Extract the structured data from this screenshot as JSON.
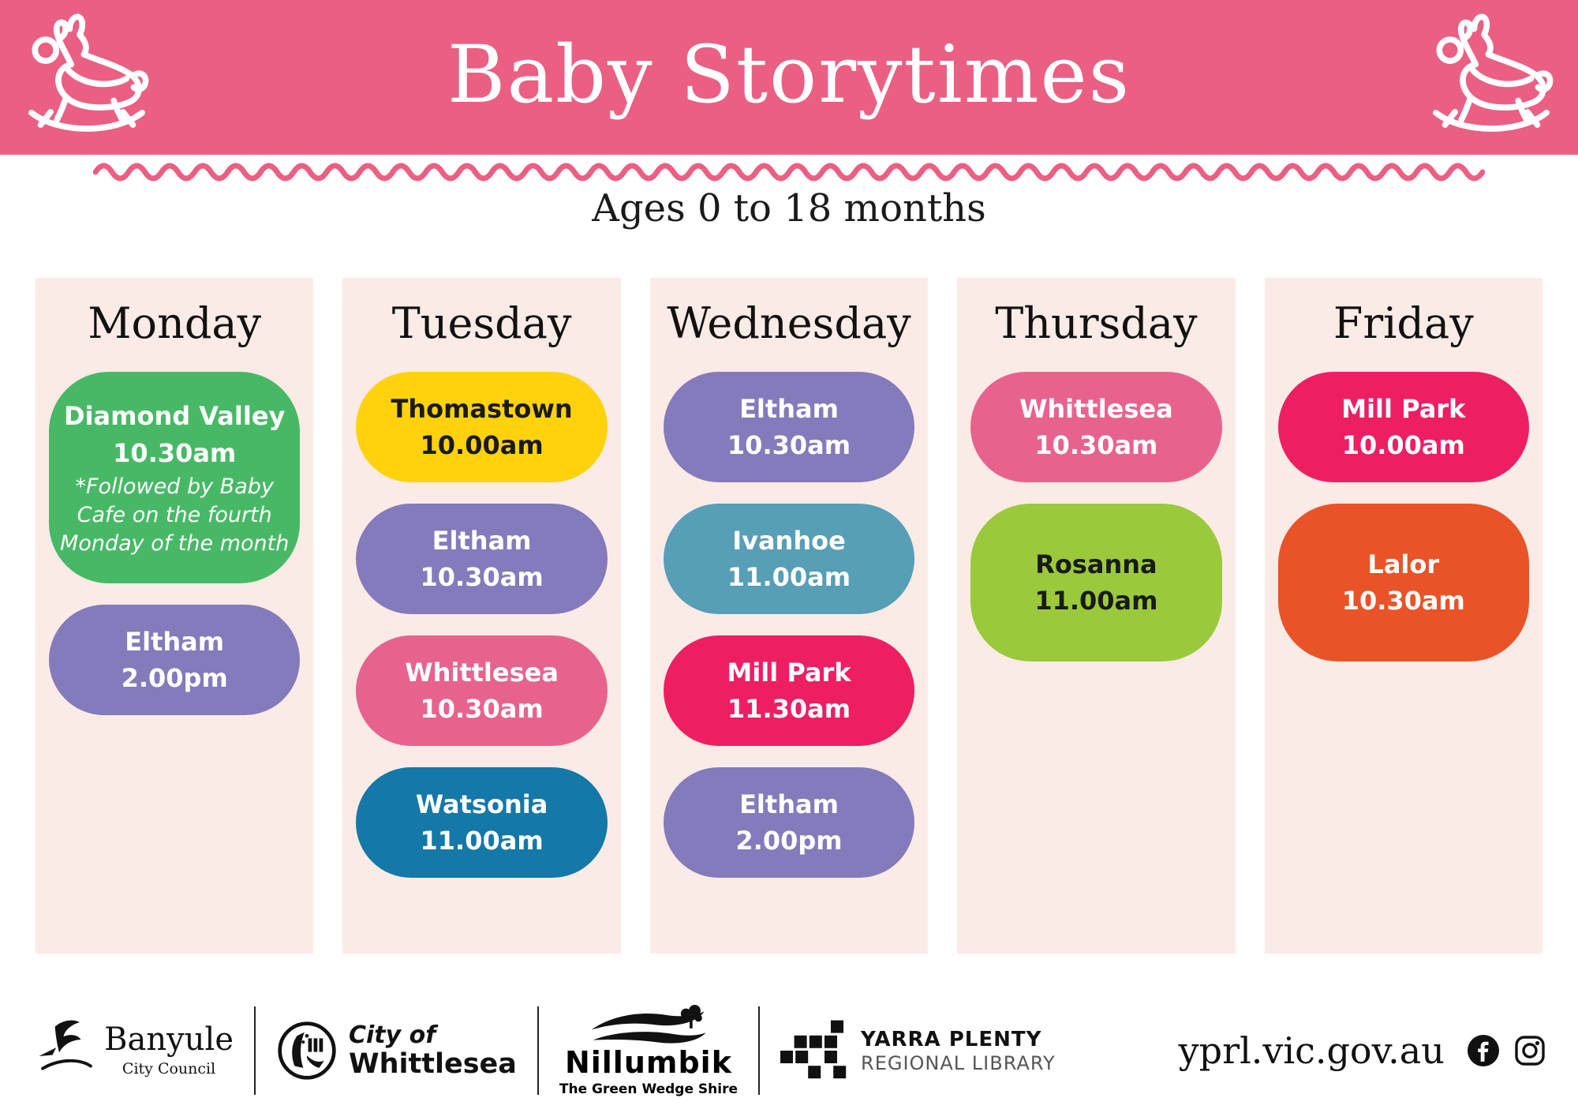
{
  "header": {
    "title": "Baby Storytimes",
    "left_icon": "rocking-horse-icon",
    "right_icon": "rocking-horse-icon"
  },
  "subtitle": "Ages 0 to 18 months",
  "days": [
    {
      "name": "Monday",
      "events": [
        {
          "location": "Diamond Valley",
          "time": "10.30am",
          "note_lines": [
            "*Followed by Baby",
            "Cafe on the fourth",
            "Monday of the month"
          ],
          "color": "#47B966",
          "text_color": "#FFFFFF"
        },
        {
          "location": "Eltham",
          "time": "2.00pm",
          "color": "#837BBB",
          "text_color": "#FFFFFF"
        }
      ]
    },
    {
      "name": "Tuesday",
      "events": [
        {
          "location": "Thomastown",
          "time": "10.00am",
          "color": "#FFD20E",
          "text_color": "#1A1A1A"
        },
        {
          "location": "Eltham",
          "time": "10.30am",
          "color": "#837BBB",
          "text_color": "#FFFFFF"
        },
        {
          "location": "Whittlesea",
          "time": "10.30am",
          "color": "#E7638D",
          "text_color": "#FFFFFF"
        },
        {
          "location": "Watsonia",
          "time": "11.00am",
          "color": "#1478A8",
          "text_color": "#FFFFFF"
        }
      ]
    },
    {
      "name": "Wednesday",
      "events": [
        {
          "location": "Eltham",
          "time": "10.30am",
          "color": "#837BBB",
          "text_color": "#FFFFFF"
        },
        {
          "location": "Ivanhoe",
          "time": "11.00am",
          "color": "#579EB7",
          "text_color": "#FFFFFF"
        },
        {
          "location": "Mill Park",
          "time": "11.30am",
          "color": "#EE1E63",
          "text_color": "#FFFFFF"
        },
        {
          "location": "Eltham",
          "time": "2.00pm",
          "color": "#837BBB",
          "text_color": "#FFFFFF"
        }
      ]
    },
    {
      "name": "Thursday",
      "events": [
        {
          "location": "Whittlesea",
          "time": "10.30am",
          "color": "#E7638D",
          "text_color": "#FFFFFF"
        },
        {
          "location": "Rosanna",
          "time": "11.00am",
          "color": "#9ACA3C",
          "text_color": "#1A1A1A",
          "tall": true
        }
      ]
    },
    {
      "name": "Friday",
      "events": [
        {
          "location": "Mill Park",
          "time": "10.00am",
          "color": "#EE1E63",
          "text_color": "#FFFFFF"
        },
        {
          "location": "Lalor",
          "time": "10.30am",
          "color": "#E95327",
          "text_color": "#FFFFFF",
          "tall": true
        }
      ]
    }
  ],
  "footer": {
    "logos": {
      "banyule": {
        "name": "Banyule",
        "sub": "City Council"
      },
      "whittlesea": {
        "line1": "City of",
        "line2": "Whittlesea"
      },
      "nillumbik": {
        "name": "Nillumbik",
        "sub": "The Green Wedge Shire"
      },
      "yprl": {
        "line1": "YARRA PLENTY",
        "line2": "REGIONAL LIBRARY"
      }
    },
    "website": "yprl.vic.gov.au",
    "social_icons": [
      "facebook-icon",
      "instagram-icon"
    ]
  },
  "colors": {
    "header_background": "#EB5F83",
    "squiggle": "#EB5F83",
    "column_background": "#FBEBE6",
    "page_background": "#FFFFFF",
    "heading_text": "#1A1A1A"
  }
}
